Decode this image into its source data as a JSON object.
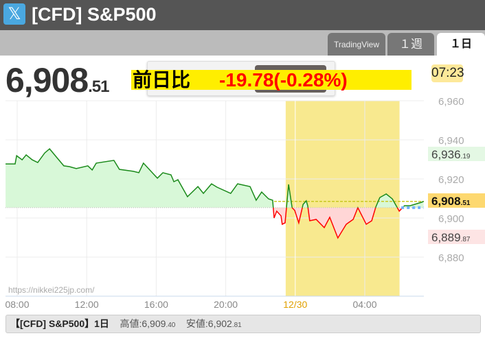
{
  "header": {
    "icon": "x-logo-icon",
    "title": "[CFD] S&P500"
  },
  "tabs": [
    {
      "label": "TradingView",
      "active": false
    },
    {
      "label": "１週",
      "active": false
    },
    {
      "label": "１日",
      "active": true
    }
  ],
  "quote": {
    "price_main": "6,908",
    "price_dec": ".51",
    "change_label": "前日比",
    "change_value": "-19.78(-0.28%)",
    "time": "07:23"
  },
  "colors": {
    "up": "#1a8a1a",
    "down": "#ff0000",
    "up_fill": "#d8f8d8",
    "down_fill": "#ffd6d6",
    "session": "#f8e98f",
    "title_bar": "#555555",
    "banner": "#ffee00"
  },
  "chart_data": {
    "type": "area",
    "watermark": "https://nikkei225jp.com/",
    "ylim": [
      6875,
      6965
    ],
    "yticks": [
      "6,960",
      "6,940",
      "6,920",
      "6,900",
      "6,880"
    ],
    "ytick_values": [
      6960,
      6940,
      6920,
      6900,
      6880
    ],
    "xticks": [
      {
        "label": "08:00",
        "t": "12/29 08:00"
      },
      {
        "label": "12:00",
        "t": "12/29 12:00"
      },
      {
        "label": "16:00",
        "t": "12/29 16:00"
      },
      {
        "label": "20:00",
        "t": "12/29 20:00"
      },
      {
        "label": "12/30",
        "t": "12/30 00:00",
        "highlight": true
      },
      {
        "label": "04:00",
        "t": "12/30 04:00"
      }
    ],
    "xlim": [
      "12/29 07:20",
      "12/30 07:25"
    ],
    "grid": true,
    "baseline": 6905.3,
    "session_band": [
      "12/29 23:27",
      "12/30 06:00"
    ],
    "current_price": 6908.51,
    "current_label_main": "6,908",
    "current_label_dec": ".51",
    "high_label": {
      "main": "6,936",
      "dec": ".19",
      "value": 6936.19
    },
    "low_label": {
      "main": "6,889",
      "dec": ".87",
      "value": 6889.87
    },
    "extension": {
      "from": "12/30 05:59",
      "to": "12/30 07:23",
      "value": 6905.3
    },
    "series": [
      [
        "12/29 07:20",
        6927.7
      ],
      [
        "12/29 07:53",
        6927.7
      ],
      [
        "12/29 07:58",
        6931.9
      ],
      [
        "12/29 08:17",
        6929.8
      ],
      [
        "12/29 08:31",
        6932.3
      ],
      [
        "12/29 08:52",
        6929.8
      ],
      [
        "12/29 09:11",
        6928.4
      ],
      [
        "12/29 09:35",
        6933.3
      ],
      [
        "12/29 09:52",
        6935.4
      ],
      [
        "12/29 10:17",
        6930.9
      ],
      [
        "12/29 10:41",
        6926.7
      ],
      [
        "12/29 11:00",
        6926.3
      ],
      [
        "12/29 11:24",
        6925.3
      ],
      [
        "12/29 12:04",
        6926.7
      ],
      [
        "12/29 12:19",
        6924.6
      ],
      [
        "12/29 12:33",
        6928.1
      ],
      [
        "12/29 13:34",
        6929.5
      ],
      [
        "12/29 13:53",
        6924.9
      ],
      [
        "12/29 14:41",
        6923.9
      ],
      [
        "12/29 15:00",
        6923.2
      ],
      [
        "12/29 15:16",
        6928.1
      ],
      [
        "12/29 16:04",
        6920.4
      ],
      [
        "12/29 16:23",
        6923.2
      ],
      [
        "12/29 16:51",
        6922.1
      ],
      [
        "12/29 17:01",
        6918.6
      ],
      [
        "12/29 17:15",
        6919.6
      ],
      [
        "12/29 17:48",
        6910.9
      ],
      [
        "12/29 18:24",
        6916.1
      ],
      [
        "12/29 18:43",
        6912.6
      ],
      [
        "12/29 19:11",
        6917.5
      ],
      [
        "12/29 19:30",
        6915.8
      ],
      [
        "12/29 20:17",
        6912.6
      ],
      [
        "12/29 20:41",
        6917.5
      ],
      [
        "12/29 21:24",
        6916.1
      ],
      [
        "12/29 21:45",
        6909.1
      ],
      [
        "12/29 22:04",
        6913.3
      ],
      [
        "12/29 22:28",
        6909.8
      ],
      [
        "12/29 22:42",
        6909.1
      ],
      [
        "12/29 22:47",
        6900.0
      ],
      [
        "12/29 22:56",
        6903.5
      ],
      [
        "12/29 23:11",
        6901.1
      ],
      [
        "12/29 23:15",
        6896.8
      ],
      [
        "12/29 23:25",
        6897.5
      ],
      [
        "12/29 23:37",
        6917.2
      ],
      [
        "12/29 23:49",
        6905.3
      ],
      [
        "12/29 23:58",
        6903.9
      ],
      [
        "12/30 00:12",
        6897.5
      ],
      [
        "12/30 00:27",
        6907.0
      ],
      [
        "12/30 00:38",
        6908.8
      ],
      [
        "12/30 00:43",
        6906.3
      ],
      [
        "12/30 00:50",
        6898.6
      ],
      [
        "12/30 01:12",
        6899.3
      ],
      [
        "12/30 01:40",
        6895.1
      ],
      [
        "12/30 01:59",
        6900.4
      ],
      [
        "12/30 02:27",
        6889.8
      ],
      [
        "12/30 02:56",
        6896.8
      ],
      [
        "12/30 03:20",
        6899.3
      ],
      [
        "12/30 03:36",
        6905.3
      ],
      [
        "12/30 04:05",
        6896.8
      ],
      [
        "12/30 04:24",
        6898.6
      ],
      [
        "12/30 04:38",
        6905.6
      ],
      [
        "12/30 04:52",
        6910.5
      ],
      [
        "12/30 05:14",
        6912.3
      ],
      [
        "12/30 05:35",
        6909.8
      ],
      [
        "12/30 05:59",
        6903.5
      ],
      [
        "12/30 06:17",
        6906.3
      ],
      [
        "12/30 06:37",
        6906.3
      ],
      [
        "12/30 07:17",
        6908.1
      ],
      [
        "12/30 07:23",
        6908.51
      ]
    ]
  },
  "footer": {
    "name": "【[CFD] S&P500】1日",
    "high_label": "高値:",
    "high_main": "6,909",
    "high_dec": ".40",
    "low_label": "安値:",
    "low_main": "6,902",
    "low_dec": ".81"
  }
}
